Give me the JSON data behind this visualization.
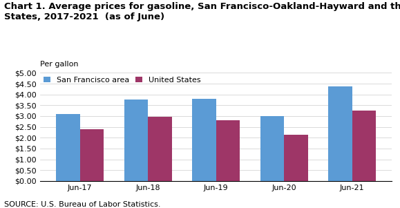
{
  "title": "Chart 1. Average prices for gasoline, San Francisco-Oakland-Hayward and the United\nStates, 2017-2021  (as of June)",
  "ylabel": "Per gallon",
  "categories": [
    "Jun-17",
    "Jun-18",
    "Jun-19",
    "Jun-20",
    "Jun-21"
  ],
  "sf_values": [
    3.1,
    3.78,
    3.8,
    3.0,
    4.38
  ],
  "us_values": [
    2.4,
    2.97,
    2.8,
    2.13,
    3.25
  ],
  "sf_color": "#5B9BD5",
  "us_color": "#9E3667",
  "ylim": [
    0,
    5.0
  ],
  "yticks": [
    0.0,
    0.5,
    1.0,
    1.5,
    2.0,
    2.5,
    3.0,
    3.5,
    4.0,
    4.5,
    5.0
  ],
  "legend_sf": "San Francisco area",
  "legend_us": "United States",
  "source": "SOURCE: U.S. Bureau of Labor Statistics.",
  "title_fontsize": 9.5,
  "axis_fontsize": 8,
  "tick_fontsize": 8,
  "bar_width": 0.35
}
